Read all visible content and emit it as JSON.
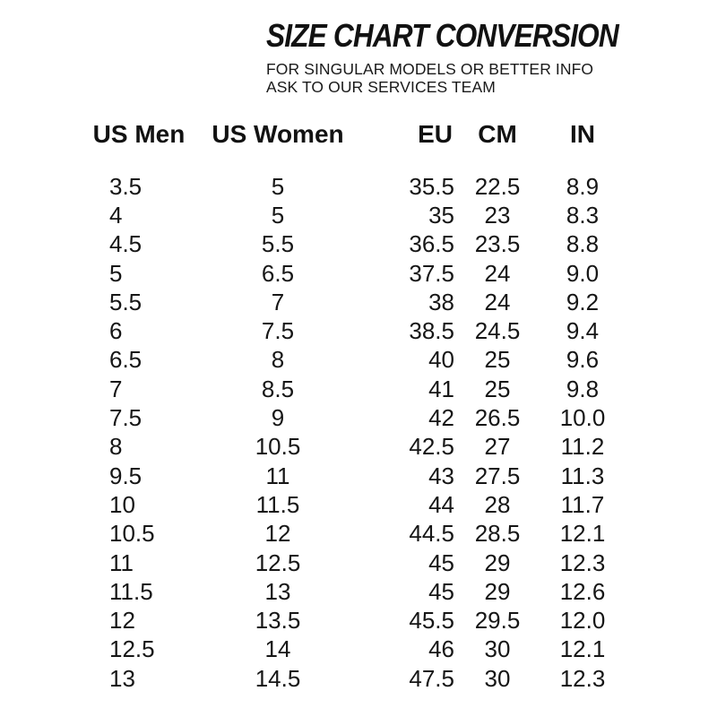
{
  "chart_data": {
    "type": "table",
    "title": "SIZE CHART CONVERSION",
    "subtitle": [
      "FOR SINGULAR MODELS OR BETTER INFO",
      "ASK TO OUR SERVICES TEAM"
    ],
    "columns": [
      "US Men",
      "US Women",
      "EU",
      "CM",
      "IN"
    ],
    "rows": [
      [
        "3.5",
        "5",
        "35.5",
        "22.5",
        "8.9"
      ],
      [
        "4",
        "5",
        "35",
        "23",
        "8.3"
      ],
      [
        "4.5",
        "5.5",
        "36.5",
        "23.5",
        "8.8"
      ],
      [
        "5",
        "6.5",
        "37.5",
        "24",
        "9.0"
      ],
      [
        "5.5",
        "7",
        "38",
        "24",
        "9.2"
      ],
      [
        "6",
        "7.5",
        "38.5",
        "24.5",
        "9.4"
      ],
      [
        "6.5",
        "8",
        "40",
        "25",
        "9.6"
      ],
      [
        "7",
        "8.5",
        "41",
        "25",
        "9.8"
      ],
      [
        "7.5",
        "9",
        "42",
        "26.5",
        "10.0"
      ],
      [
        "8",
        "10.5",
        "42.5",
        "27",
        "11.2"
      ],
      [
        "9.5",
        "11",
        "43",
        "27.5",
        "11.3"
      ],
      [
        "10",
        "11.5",
        "44",
        "28",
        "11.7"
      ],
      [
        "10.5",
        "12",
        "44.5",
        "28.5",
        "12.1"
      ],
      [
        "11",
        "12.5",
        "45",
        "29",
        "12.3"
      ],
      [
        "11.5",
        "13",
        "45",
        "29",
        "12.6"
      ],
      [
        "12",
        "13.5",
        "45.5",
        "29.5",
        "12.0"
      ],
      [
        "12.5",
        "14",
        "46",
        "30",
        "12.1"
      ],
      [
        "13",
        "14.5",
        "47.5",
        "30",
        "12.3"
      ]
    ]
  },
  "colors": {
    "text": "#141414",
    "background": "#ffffff"
  }
}
